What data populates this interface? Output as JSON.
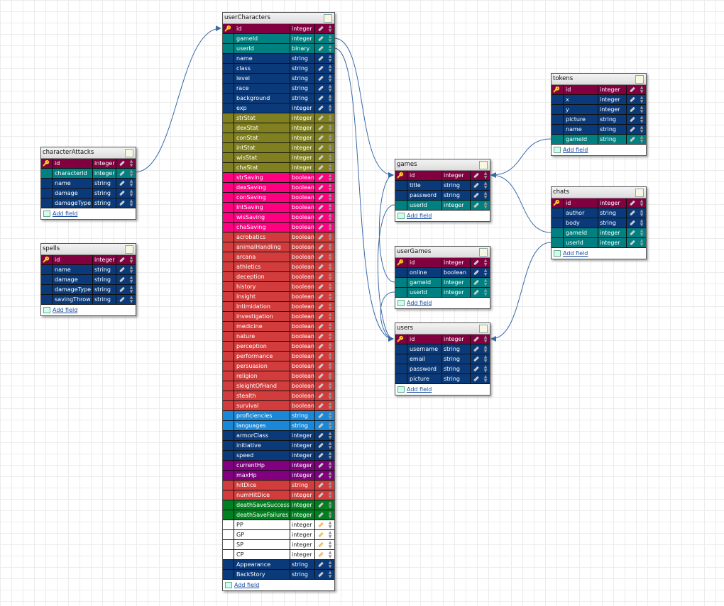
{
  "palette": {
    "pk": "#800040",
    "fk": "#008080",
    "navy": "#0a3a7a",
    "olive": "#808020",
    "pink": "#ff0080",
    "red": "#d23c3c",
    "blue": "#1a88d8",
    "purple": "#800080",
    "green": "#008020",
    "white": "#ffffff"
  },
  "add_field_label": "Add field",
  "tables": [
    {
      "id": "userCharacters",
      "title": "userCharacters",
      "fields": [
        [
          "id",
          "integer",
          "pk",
          1
        ],
        [
          "gameId",
          "integer",
          "fk"
        ],
        [
          "userId",
          "binary",
          "fk"
        ],
        [
          "name",
          "string",
          "navy"
        ],
        [
          "class",
          "string",
          "navy"
        ],
        [
          "level",
          "string",
          "navy"
        ],
        [
          "race",
          "string",
          "navy"
        ],
        [
          "background",
          "string",
          "navy"
        ],
        [
          "exp",
          "integer",
          "navy"
        ],
        [
          "strStat",
          "integer",
          "olive"
        ],
        [
          "dexStat",
          "integer",
          "olive"
        ],
        [
          "conStat",
          "integer",
          "olive"
        ],
        [
          "intStat",
          "integer",
          "olive"
        ],
        [
          "wisStat",
          "integer",
          "olive"
        ],
        [
          "chaStat",
          "integer",
          "olive"
        ],
        [
          "strSaving",
          "boolean",
          "pink"
        ],
        [
          "dexSaving",
          "boolean",
          "pink"
        ],
        [
          "conSaving",
          "boolean",
          "pink"
        ],
        [
          "IntSaving",
          "boolean",
          "pink"
        ],
        [
          "wisSaving",
          "boolean",
          "pink"
        ],
        [
          "chaSaving",
          "boolean",
          "pink"
        ],
        [
          "acrobatics",
          "boolean",
          "red"
        ],
        [
          "animalHandling",
          "boolean",
          "red"
        ],
        [
          "arcana",
          "boolean",
          "red"
        ],
        [
          "athletics",
          "boolean",
          "red"
        ],
        [
          "deception",
          "boolean",
          "red"
        ],
        [
          "history",
          "boolean",
          "red"
        ],
        [
          "insight",
          "boolean",
          "red"
        ],
        [
          "intimidation",
          "boolean",
          "red"
        ],
        [
          "investigation",
          "boolean",
          "red"
        ],
        [
          "medicine",
          "boolean",
          "red"
        ],
        [
          "nature",
          "boolean",
          "red"
        ],
        [
          "perception",
          "boolean",
          "red"
        ],
        [
          "performance",
          "boolean",
          "red"
        ],
        [
          "persuasion",
          "boolean",
          "red"
        ],
        [
          "religion",
          "boolean",
          "red"
        ],
        [
          "sleightOfHand",
          "boolean",
          "red"
        ],
        [
          "stealth",
          "boolean",
          "red"
        ],
        [
          "survival",
          "boolean",
          "red"
        ],
        [
          "proficiencies",
          "string",
          "blue"
        ],
        [
          "languages",
          "string",
          "blue"
        ],
        [
          "armorClass",
          "integer",
          "navy"
        ],
        [
          "initiative",
          "integer",
          "navy"
        ],
        [
          "speed",
          "integer",
          "navy"
        ],
        [
          "currentHp",
          "integer",
          "purple"
        ],
        [
          "maxHp",
          "integer",
          "purple"
        ],
        [
          "hitDice",
          "string",
          "red"
        ],
        [
          "numHitDice",
          "integer",
          "red"
        ],
        [
          "deathSaveSuccesses",
          "integer",
          "green"
        ],
        [
          "deathSaveFailures",
          "integer",
          "green"
        ],
        [
          "PP",
          "integer",
          "white"
        ],
        [
          "GP",
          "integer",
          "white"
        ],
        [
          "SP",
          "integer",
          "white"
        ],
        [
          "CP",
          "integer",
          "white"
        ],
        [
          "Appearance",
          "string",
          "navy"
        ],
        [
          "BackStory",
          "string",
          "navy"
        ]
      ]
    },
    {
      "id": "characterAttacks",
      "title": "characterAttacks",
      "fields": [
        [
          "id",
          "integer",
          "pk",
          1
        ],
        [
          "characterId",
          "integer",
          "fk"
        ],
        [
          "name",
          "string",
          "navy"
        ],
        [
          "damage",
          "string",
          "navy"
        ],
        [
          "damageType",
          "string",
          "navy"
        ]
      ]
    },
    {
      "id": "spells",
      "title": "spells",
      "fields": [
        [
          "id",
          "integer",
          "pk",
          1
        ],
        [
          "name",
          "string",
          "navy"
        ],
        [
          "damage",
          "string",
          "navy"
        ],
        [
          "damageType",
          "string",
          "navy"
        ],
        [
          "savingThrow",
          "string",
          "navy"
        ]
      ]
    },
    {
      "id": "games",
      "title": "games",
      "fields": [
        [
          "id",
          "integer",
          "pk",
          1
        ],
        [
          "title",
          "string",
          "navy"
        ],
        [
          "password",
          "string",
          "navy"
        ],
        [
          "userId",
          "integer",
          "fk"
        ]
      ]
    },
    {
      "id": "userGames",
      "title": "userGames",
      "fields": [
        [
          "id",
          "integer",
          "pk",
          1
        ],
        [
          "online",
          "boolean",
          "navy"
        ],
        [
          "gameId",
          "integer",
          "fk"
        ],
        [
          "userId",
          "integer",
          "fk"
        ]
      ]
    },
    {
      "id": "users",
      "title": "users",
      "fields": [
        [
          "id",
          "integer",
          "pk",
          1
        ],
        [
          "username",
          "string",
          "navy"
        ],
        [
          "email",
          "string",
          "navy"
        ],
        [
          "password",
          "string",
          "navy"
        ],
        [
          "picture",
          "string",
          "navy"
        ]
      ]
    },
    {
      "id": "tokens",
      "title": "tokens",
      "fields": [
        [
          "id",
          "integer",
          "pk",
          1
        ],
        [
          "x",
          "integer",
          "navy"
        ],
        [
          "y",
          "integer",
          "navy"
        ],
        [
          "picture",
          "string",
          "navy"
        ],
        [
          "name",
          "string",
          "navy"
        ],
        [
          "gameId",
          "string",
          "fk"
        ]
      ]
    },
    {
      "id": "chats",
      "title": "chats",
      "fields": [
        [
          "id",
          "integer",
          "pk",
          1
        ],
        [
          "author",
          "string",
          "navy"
        ],
        [
          "body",
          "string",
          "navy"
        ],
        [
          "gameId",
          "integer",
          "fk"
        ],
        [
          "userId",
          "integer",
          "fk"
        ]
      ]
    }
  ]
}
